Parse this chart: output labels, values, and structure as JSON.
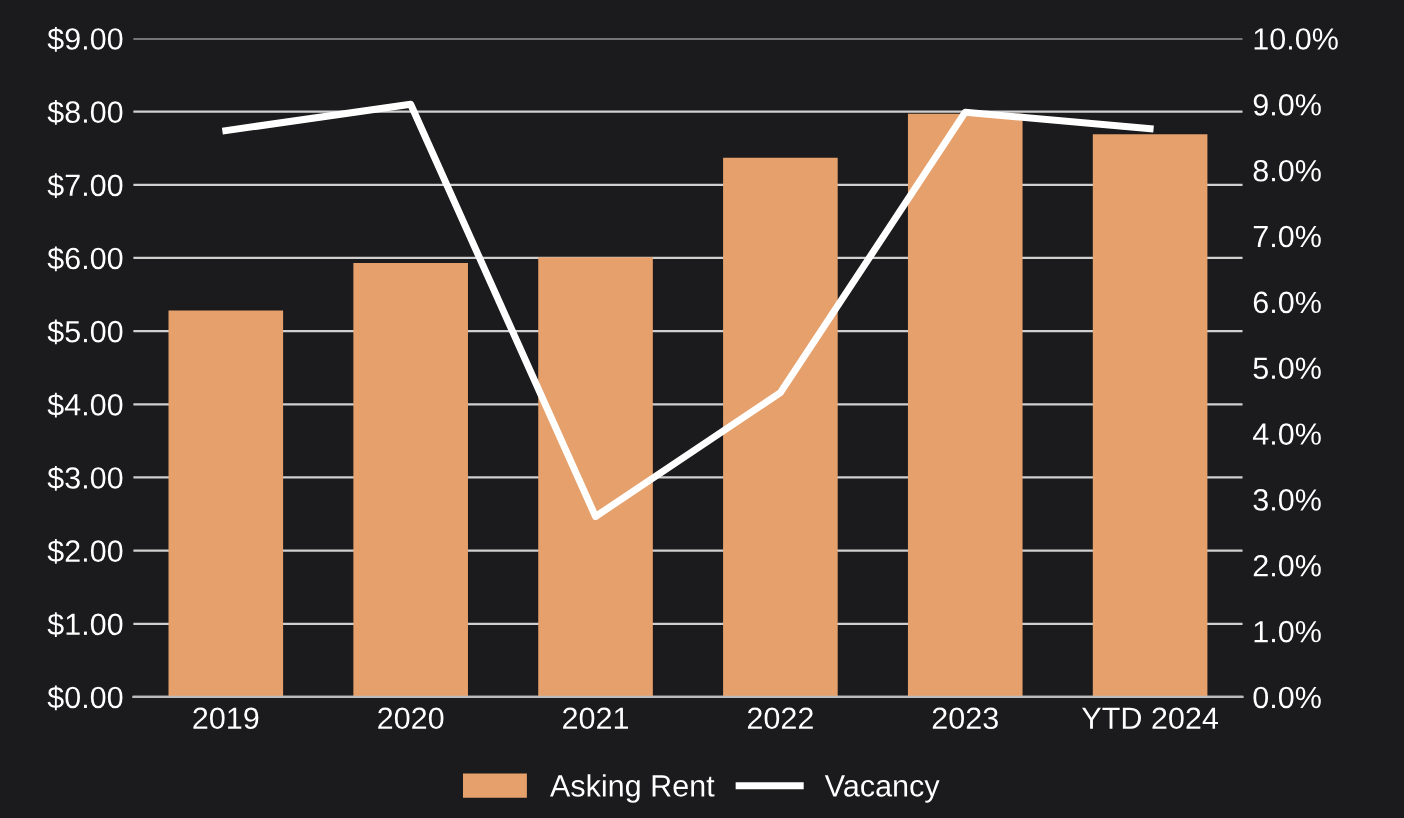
{
  "chart_data": {
    "type": "bar",
    "categories": [
      "2019",
      "2020",
      "2021",
      "2022",
      "2023",
      "YTD 2024"
    ],
    "series": [
      {
        "name": "Asking Rent",
        "color": "#e6a06b",
        "values": [
          5.28,
          5.93,
          6.01,
          7.37,
          7.97,
          7.69
        ]
      },
      {
        "name": "Vacancy",
        "type": "line",
        "axis": "y2",
        "color": "#ffffff",
        "values": [
          8.6,
          9.0,
          2.74,
          4.62,
          8.88,
          8.63
        ]
      }
    ],
    "ylim": [
      0,
      9
    ],
    "yticks": [
      {
        "value": 0,
        "label": "$0.00"
      },
      {
        "value": 1,
        "label": "$1.00"
      },
      {
        "value": 2,
        "label": "$2.00"
      },
      {
        "value": 3,
        "label": "$3.00"
      },
      {
        "value": 4,
        "label": "$4.00"
      },
      {
        "value": 5,
        "label": "$5.00"
      },
      {
        "value": 6,
        "label": "$6.00"
      },
      {
        "value": 7,
        "label": "$7.00"
      },
      {
        "value": 8,
        "label": "$8.00"
      },
      {
        "value": 9,
        "label": "$9.00"
      }
    ],
    "y2lim": [
      0,
      10
    ],
    "y2ticks": [
      {
        "value": 0,
        "label": "0.0%"
      },
      {
        "value": 1,
        "label": "1.0%"
      },
      {
        "value": 2,
        "label": "2.0%"
      },
      {
        "value": 3,
        "label": "3.0%"
      },
      {
        "value": 4,
        "label": "4.0%"
      },
      {
        "value": 5,
        "label": "5.0%"
      },
      {
        "value": 6,
        "label": "6.0%"
      },
      {
        "value": 7,
        "label": "7.0%"
      },
      {
        "value": 8,
        "label": "8.0%"
      },
      {
        "value": 9,
        "label": "9.0%"
      },
      {
        "value": 10,
        "label": "10.0%"
      }
    ],
    "grid": "y",
    "legend": "bottom",
    "marker": "none",
    "line_style": "solid"
  }
}
